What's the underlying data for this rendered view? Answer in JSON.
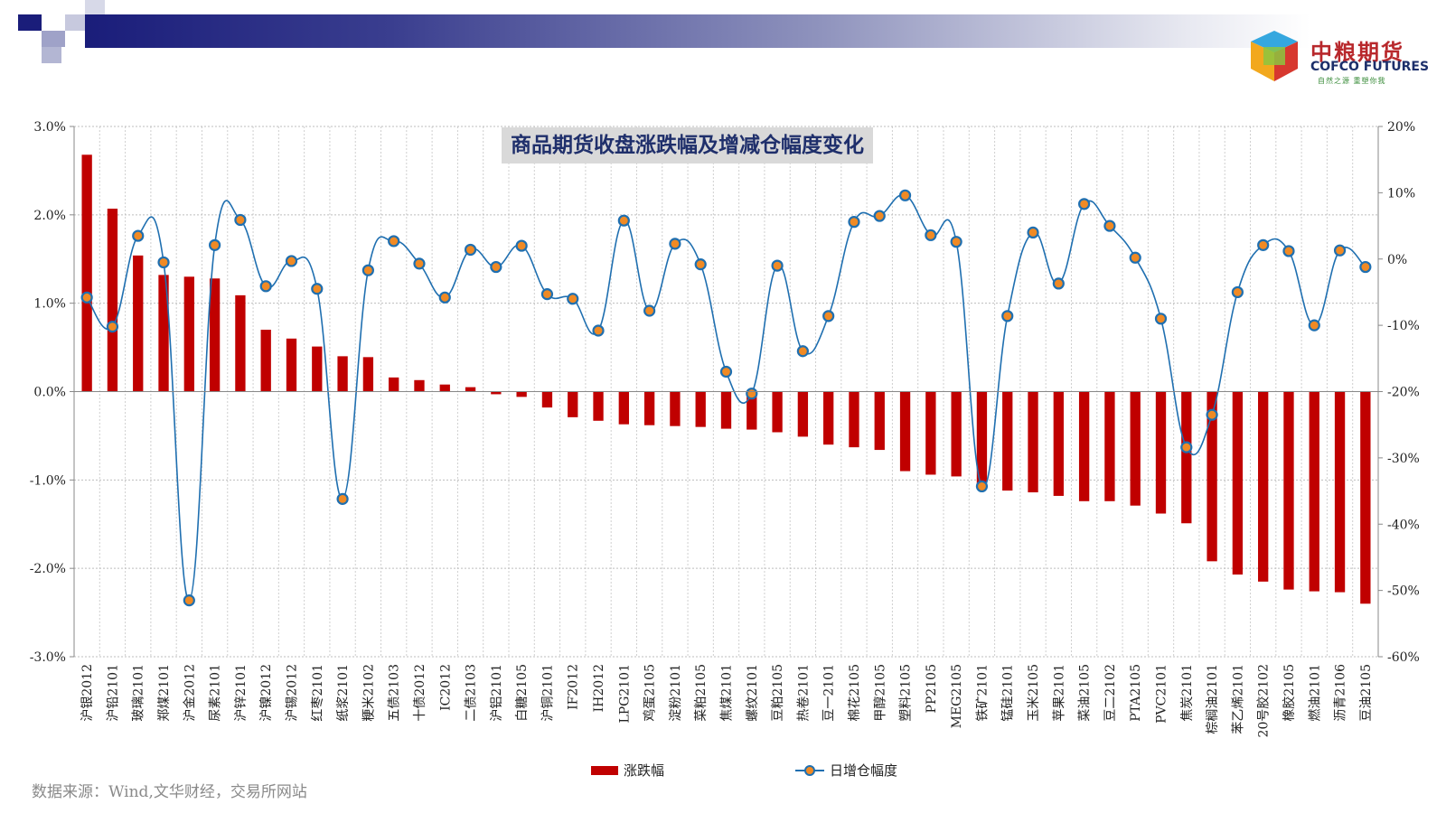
{
  "header": {
    "logo_cn": "中粮期货",
    "logo_en": "COFCO FUTURES",
    "logo_slogan": "自然之源  重塑你我",
    "colors": {
      "brand_red": "#b8282c",
      "brand_navy": "#1c2f6b"
    }
  },
  "source_note": "数据来源：Wind,文华财经，交易所网站",
  "chart_data": {
    "type": "bar",
    "title": "商品期货收盘涨跌幅及增减仓幅度变化",
    "categories": [
      "沪银2012",
      "沪铅2101",
      "玻璃2101",
      "郑煤2101",
      "沪金2012",
      "尿素2101",
      "沪锌2101",
      "沪镍2012",
      "沪锡2012",
      "红枣2101",
      "纸浆2101",
      "粳米2102",
      "五债2103",
      "十债2012",
      "IC2012",
      "二债2103",
      "沪铝2101",
      "白糖2105",
      "沪铜2101",
      "IF2012",
      "IH2012",
      "LPG2101",
      "鸡蛋2105",
      "淀粉2101",
      "菜粕2105",
      "焦煤2101",
      "螺纹2101",
      "豆粕2105",
      "热卷2101",
      "豆一2101",
      "棉花2105",
      "甲醇2105",
      "塑料2105",
      "PP2105",
      "MEG2105",
      "铁矿2101",
      "锰硅2101",
      "玉米2105",
      "苹果2101",
      "菜油2105",
      "豆二2102",
      "PTA2105",
      "PVC2101",
      "焦炭2101",
      "棕榈油2101",
      "苯乙烯2101",
      "20号胶2102",
      "橡胶2105",
      "燃油2101",
      "沥青2106",
      "豆油2105"
    ],
    "series": [
      {
        "name": "涨跌幅",
        "type": "bar",
        "axis": "left",
        "color": "#c00000",
        "values": [
          2.68,
          2.07,
          1.54,
          1.32,
          1.3,
          1.28,
          1.09,
          0.7,
          0.6,
          0.51,
          0.4,
          0.39,
          0.16,
          0.13,
          0.08,
          0.05,
          -0.03,
          -0.06,
          -0.18,
          -0.29,
          -0.33,
          -0.37,
          -0.38,
          -0.39,
          -0.4,
          -0.42,
          -0.43,
          -0.46,
          -0.51,
          -0.6,
          -0.63,
          -0.66,
          -0.9,
          -0.94,
          -0.96,
          -1.04,
          -1.12,
          -1.14,
          -1.18,
          -1.24,
          -1.24,
          -1.29,
          -1.38,
          -1.49,
          -1.92,
          -2.07,
          -2.15,
          -2.24,
          -2.26,
          -2.27,
          -2.4
        ]
      },
      {
        "name": "日增仓幅度",
        "type": "line",
        "axis": "right",
        "color": "#1f6fb0",
        "marker_color": "#f08a24",
        "values": [
          -5.8,
          -10.2,
          3.5,
          -0.5,
          -51.5,
          2.1,
          5.9,
          -4.1,
          -0.3,
          -4.5,
          -36.2,
          -1.7,
          2.7,
          -0.7,
          -5.8,
          1.4,
          -1.2,
          2.0,
          -5.3,
          -6.0,
          -10.8,
          5.8,
          -7.8,
          2.3,
          -0.8,
          -17.0,
          -20.3,
          -1.0,
          -13.9,
          -8.6,
          5.6,
          6.5,
          9.6,
          3.6,
          2.6,
          -34.3,
          -8.6,
          4.0,
          -3.7,
          8.3,
          5.0,
          0.2,
          -9.0,
          -28.4,
          -23.5,
          -5.0,
          2.1,
          1.2,
          -10.0,
          1.3,
          -1.2
        ]
      }
    ],
    "y_left": {
      "min": -3.0,
      "max": 3.0,
      "step": 1.0,
      "ticks": [
        "-3.0%",
        "-2.0%",
        "-1.0%",
        "0.0%",
        "1.0%",
        "2.0%",
        "3.0%"
      ]
    },
    "y_right": {
      "min": -60,
      "max": 20,
      "step": 10,
      "ticks": [
        "-60%",
        "-50%",
        "-40%",
        "-30%",
        "-20%",
        "-10%",
        "0%",
        "10%",
        "20%"
      ]
    },
    "grid": "vertical dotted",
    "legend_position": "bottom"
  }
}
